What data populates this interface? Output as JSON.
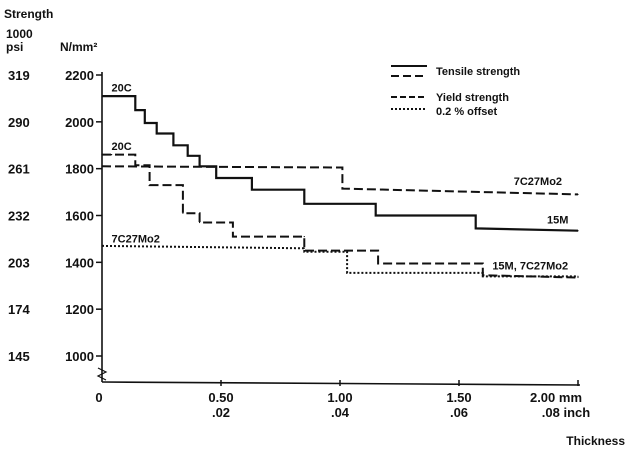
{
  "chart_data": {
    "type": "line",
    "title": "",
    "axis_titles": {
      "left_top": "Strength",
      "left_psi_unit_line1": "1000",
      "left_psi_unit_line2": "psi",
      "left_si_unit": "N/mm²",
      "bottom_right": "Thickness"
    },
    "x_unit_mm": "mm",
    "x_unit_inch": "inch",
    "xlim": [
      0,
      2.0
    ],
    "ylim": [
      1000,
      2200
    ],
    "grid": false,
    "legend_position": "top-right",
    "y_ticks_si": [
      "2200",
      "2000",
      "1800",
      "1600",
      "1400",
      "1200",
      "1000"
    ],
    "y_ticks_si_values": [
      2200,
      2000,
      1800,
      1600,
      1400,
      1200,
      1000
    ],
    "y_ticks_psi": [
      "319",
      "290",
      "261",
      "232",
      "203",
      "174",
      "145"
    ],
    "x_ticks_mm": [
      "0",
      "0.50",
      "1.00",
      "1.50",
      "2.00"
    ],
    "x_ticks_mm_values": [
      0,
      0.5,
      1.0,
      1.5,
      2.0
    ],
    "x_ticks_inch": [
      ".02",
      ".04",
      ".06",
      ".08"
    ],
    "x_ticks_inch_values": [
      0.5,
      1.0,
      1.5,
      2.0
    ],
    "legend": [
      {
        "label": "Tensile strength",
        "style": "solid+dashed"
      },
      {
        "label": "Yield strength",
        "style": "dashed"
      },
      {
        "label": "0.2 % offset",
        "style": "dotted"
      }
    ],
    "annotations": [
      {
        "text": "20C",
        "x": 0.04,
        "y": 2130
      },
      {
        "text": "20C",
        "x": 0.04,
        "y": 1880
      },
      {
        "text": "7C27Mo2",
        "x": 0.04,
        "y": 1485
      },
      {
        "text": "7C27Mo2",
        "x": 1.73,
        "y": 1730
      },
      {
        "text": "15M",
        "x": 1.87,
        "y": 1565
      },
      {
        "text": "15M, 7C27Mo2",
        "x": 1.64,
        "y": 1370
      }
    ],
    "series": [
      {
        "style": "solid",
        "x": [
          0,
          0.04,
          0.04,
          0.14,
          0.14,
          0.18,
          0.18,
          0.23,
          0.23,
          0.3,
          0.3,
          0.36,
          0.36,
          0.41,
          0.41,
          0.48,
          0.48,
          0.63,
          0.63,
          0.85,
          0.85,
          1.15,
          1.15,
          1.57,
          1.57,
          2.0
        ],
        "y": [
          2110,
          2110,
          2110,
          2110,
          2050,
          2050,
          1995,
          1995,
          1950,
          1950,
          1900,
          1900,
          1855,
          1855,
          1810,
          1810,
          1760,
          1760,
          1710,
          1710,
          1650,
          1650,
          1600,
          1600,
          1545,
          1535
        ]
      },
      {
        "style": "dashed",
        "x": [
          0,
          1.01,
          1.01,
          2.0
        ],
        "y": [
          1810,
          1805,
          1715,
          1690
        ]
      },
      {
        "style": "dashed",
        "x": [
          0,
          0.04,
          0.04,
          0.14,
          0.14,
          0.2,
          0.2,
          0.34,
          0.34,
          0.41,
          0.41,
          0.55,
          0.55,
          0.85,
          0.85,
          1.16,
          1.16,
          1.6,
          1.6,
          2.0
        ],
        "y": [
          1860,
          1860,
          1860,
          1860,
          1815,
          1815,
          1730,
          1730,
          1610,
          1610,
          1570,
          1570,
          1510,
          1510,
          1450,
          1450,
          1395,
          1395,
          1345,
          1335
        ]
      },
      {
        "style": "dotted",
        "x": [
          0,
          0.85,
          0.85,
          1.03,
          1.03,
          1.6,
          1.6,
          2.0
        ],
        "y": [
          1470,
          1460,
          1445,
          1445,
          1355,
          1355,
          1340,
          1340
        ]
      }
    ]
  }
}
